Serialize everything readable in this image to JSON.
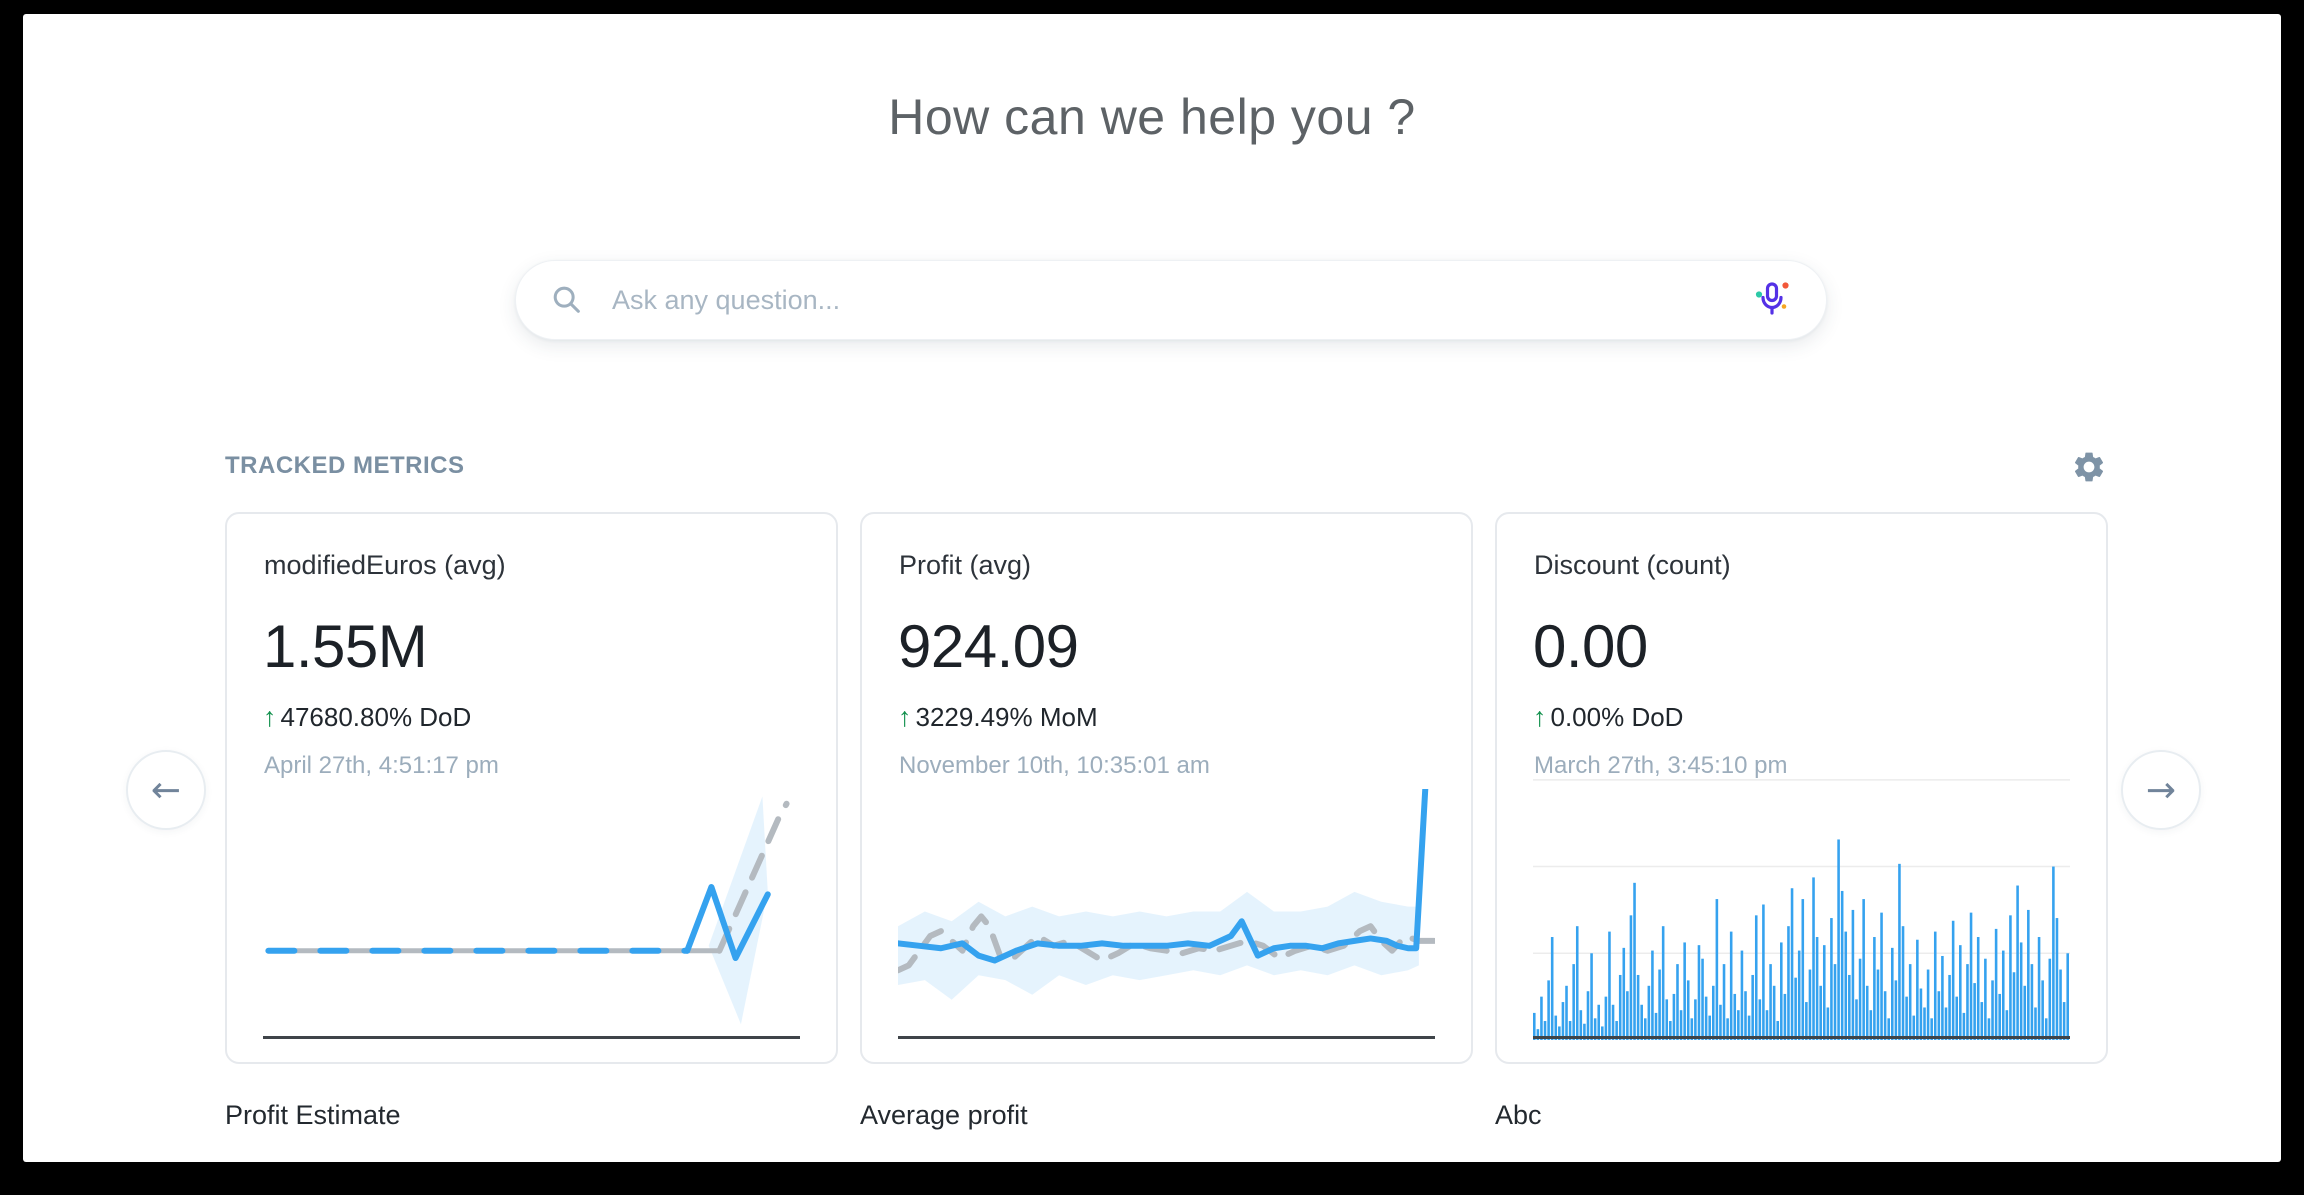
{
  "page": {
    "title": "How can we help you ?",
    "search": {
      "placeholder": "Ask any question..."
    },
    "section_heading": "TRACKED METRICS"
  },
  "icons": {
    "up_arrow": "↑",
    "prev_arrow": "←",
    "next_arrow": "→"
  },
  "colors": {
    "accent_blue": "#35a2ef",
    "series_gray": "#b4bac0",
    "band_blue": "rgba(53,162,239,0.13)",
    "positive_green": "#13914e",
    "axis_dark": "#3f4449",
    "grid_gray": "#ececec",
    "muted_slate": "#9cadbc",
    "heading_slate": "#7a8fa2"
  },
  "metrics": [
    {
      "title": "modifiedEuros (avg)",
      "value": "1.55M",
      "change": "47680.80% DoD",
      "change_direction": "up",
      "timestamp": "April 27th, 4:51:17 pm",
      "footer_label": "Profit Estimate"
    },
    {
      "title": "Profit (avg)",
      "value": "924.09",
      "change": "3229.49% MoM",
      "change_direction": "up",
      "timestamp": "November 10th, 10:35:01 am",
      "footer_label": "Average profit"
    },
    {
      "title": "Discount (count)",
      "value": "0.00",
      "change": "0.00% DoD",
      "change_direction": "up",
      "timestamp": "March 27th, 3:45:10 pm",
      "footer_label": "Abc"
    }
  ],
  "chart_data": [
    {
      "type": "line",
      "title": "modifiedEuros (avg)",
      "xlim": [
        0,
        100
      ],
      "ylim": [
        0,
        100
      ],
      "grid": false,
      "legend": "none",
      "band_color": "rgba(53,162,239,0.13)",
      "band": [
        [
          83,
          36
        ],
        [
          93,
          97
        ],
        [
          94,
          58
        ],
        [
          89,
          4
        ]
      ],
      "series": [
        {
          "name": "previous-flat",
          "color": "#b4bac0",
          "width": 5,
          "points": [
            [
              1,
              34
            ],
            [
              85,
              34
            ]
          ]
        },
        {
          "name": "previous-rise",
          "color": "#b4bac0",
          "width": 6,
          "dash": "24 16",
          "points": [
            [
              85,
              34
            ],
            [
              96,
              88
            ],
            [
              97.5,
              94
            ]
          ]
        },
        {
          "name": "actual-flat",
          "color": "#35a2ef",
          "width": 6,
          "dash": "26 26",
          "points": [
            [
              1,
              34
            ],
            [
              79,
              34
            ]
          ]
        },
        {
          "name": "actual-spike",
          "color": "#35a2ef",
          "width": 6,
          "points": [
            [
              79,
              34
            ],
            [
              83.5,
              60
            ],
            [
              88,
              31
            ],
            [
              94,
              57
            ]
          ]
        }
      ]
    },
    {
      "type": "line",
      "title": "Profit (avg)",
      "xlim": [
        0,
        100
      ],
      "ylim": [
        0,
        100
      ],
      "grid": false,
      "legend": "none",
      "band_color": "rgba(53,162,239,0.13)",
      "band": [
        [
          0,
          44
        ],
        [
          5,
          50
        ],
        [
          10,
          46
        ],
        [
          15,
          54
        ],
        [
          20,
          48
        ],
        [
          25,
          52
        ],
        [
          30,
          48
        ],
        [
          35,
          50
        ],
        [
          40,
          48
        ],
        [
          45,
          50
        ],
        [
          50,
          48
        ],
        [
          55,
          50
        ],
        [
          60,
          50
        ],
        [
          65,
          58
        ],
        [
          70,
          50
        ],
        [
          75,
          50
        ],
        [
          80,
          52
        ],
        [
          85,
          58
        ],
        [
          90,
          54
        ],
        [
          95,
          52
        ],
        [
          97,
          52
        ],
        [
          97,
          28
        ],
        [
          95,
          26
        ],
        [
          90,
          24
        ],
        [
          85,
          28
        ],
        [
          80,
          24
        ],
        [
          75,
          26
        ],
        [
          70,
          24
        ],
        [
          65,
          28
        ],
        [
          60,
          24
        ],
        [
          55,
          26
        ],
        [
          50,
          24
        ],
        [
          45,
          22
        ],
        [
          40,
          24
        ],
        [
          35,
          20
        ],
        [
          30,
          24
        ],
        [
          25,
          16
        ],
        [
          20,
          22
        ],
        [
          15,
          24
        ],
        [
          10,
          14
        ],
        [
          5,
          22
        ],
        [
          0,
          20
        ]
      ],
      "series": [
        {
          "name": "previous",
          "color": "#b4bac0",
          "width": 6,
          "dash": "22 16",
          "points": [
            [
              0,
              26
            ],
            [
              2,
              28
            ],
            [
              4,
              34
            ],
            [
              6,
              40
            ],
            [
              8,
              42
            ],
            [
              10,
              38
            ],
            [
              12,
              34
            ],
            [
              14,
              44
            ],
            [
              15.5,
              48
            ],
            [
              17,
              44
            ],
            [
              19,
              32
            ],
            [
              21,
              30
            ],
            [
              23,
              34
            ],
            [
              26,
              40
            ],
            [
              29,
              36
            ],
            [
              32,
              38
            ],
            [
              35,
              34
            ],
            [
              38,
              30
            ],
            [
              41,
              33
            ],
            [
              44,
              37
            ],
            [
              47,
              35
            ],
            [
              50,
              34
            ],
            [
              53,
              33
            ],
            [
              56,
              35
            ],
            [
              59,
              34
            ],
            [
              62,
              36
            ],
            [
              65,
              38
            ],
            [
              68,
              36
            ],
            [
              71,
              31
            ],
            [
              74,
              34
            ],
            [
              77,
              36
            ],
            [
              80,
              34
            ],
            [
              83,
              36
            ],
            [
              86,
              42
            ],
            [
              88,
              44
            ],
            [
              90,
              38
            ],
            [
              92,
              34
            ],
            [
              94.5,
              40
            ],
            [
              97,
              38
            ],
            [
              100,
              38
            ]
          ]
        },
        {
          "name": "actual",
          "color": "#35a2ef",
          "width": 6,
          "points": [
            [
              0,
              37
            ],
            [
              4,
              36
            ],
            [
              8,
              35
            ],
            [
              12,
              37
            ],
            [
              15,
              32
            ],
            [
              18,
              30
            ],
            [
              22,
              34
            ],
            [
              26,
              37
            ],
            [
              30,
              36
            ],
            [
              34,
              36
            ],
            [
              38,
              37
            ],
            [
              42,
              36
            ],
            [
              46,
              36
            ],
            [
              50,
              36
            ],
            [
              54,
              37
            ],
            [
              58,
              36
            ],
            [
              62,
              40
            ],
            [
              64,
              46
            ],
            [
              67,
              32
            ],
            [
              70,
              35
            ],
            [
              73,
              36
            ],
            [
              76,
              36
            ],
            [
              79,
              35
            ],
            [
              82,
              37
            ],
            [
              85,
              38
            ],
            [
              88,
              39
            ],
            [
              91,
              38
            ],
            [
              93,
              36
            ],
            [
              95,
              35
            ],
            [
              96.5,
              35
            ],
            [
              98.5,
              112
            ]
          ]
        }
      ]
    },
    {
      "type": "bars",
      "title": "Discount (count)",
      "xlim": [
        0,
        150
      ],
      "ylim": [
        0,
        100
      ],
      "grid": true,
      "gridlines": [
        32,
        64,
        96
      ],
      "grid_color": "#ececec",
      "legend": "none",
      "color": "#35a2ef",
      "values": [
        10,
        4,
        16,
        7,
        22,
        38,
        9,
        5,
        14,
        20,
        7,
        28,
        42,
        11,
        6,
        18,
        32,
        8,
        13,
        5,
        16,
        40,
        13,
        7,
        24,
        34,
        18,
        46,
        58,
        24,
        13,
        8,
        20,
        33,
        10,
        26,
        42,
        15,
        7,
        17,
        28,
        11,
        36,
        22,
        8,
        15,
        35,
        30,
        16,
        9,
        20,
        52,
        13,
        28,
        8,
        40,
        17,
        11,
        33,
        18,
        9,
        24,
        46,
        15,
        50,
        11,
        28,
        20,
        7,
        36,
        17,
        42,
        56,
        23,
        33,
        52,
        14,
        26,
        60,
        38,
        20,
        35,
        12,
        45,
        28,
        74,
        55,
        40,
        24,
        48,
        15,
        30,
        52,
        20,
        11,
        38,
        26,
        47,
        18,
        8,
        34,
        22,
        65,
        42,
        16,
        28,
        9,
        37,
        19,
        12,
        26,
        8,
        40,
        18,
        31,
        12,
        24,
        44,
        16,
        35,
        10,
        28,
        47,
        21,
        38,
        14,
        30,
        8,
        22,
        41,
        17,
        33,
        11,
        46,
        25,
        57,
        36,
        20,
        48,
        28,
        12,
        38,
        22,
        8,
        30,
        64,
        45,
        26,
        14,
        32
      ]
    }
  ]
}
